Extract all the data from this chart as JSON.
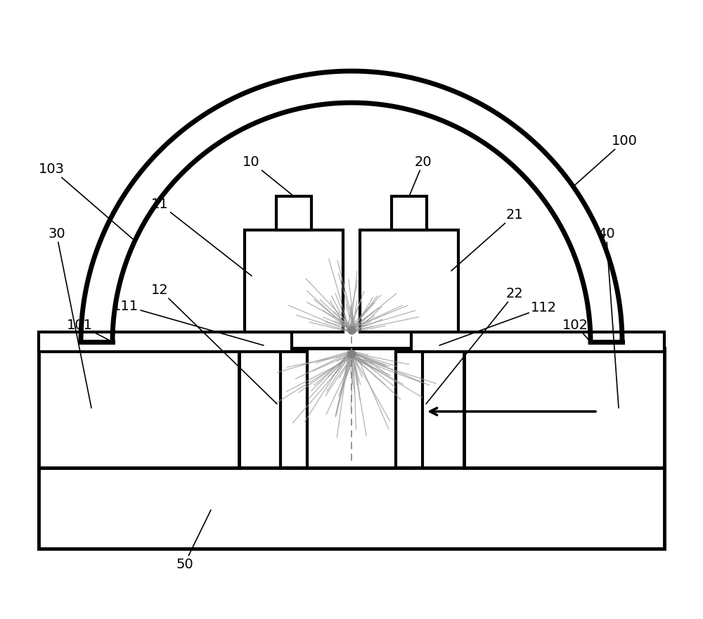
{
  "bg_color": "#ffffff",
  "line_color": "#000000",
  "gray_color": "#808080",
  "light_gray": "#999999",
  "fig_w": 10.0,
  "fig_h": 8.8,
  "dpi": 100
}
